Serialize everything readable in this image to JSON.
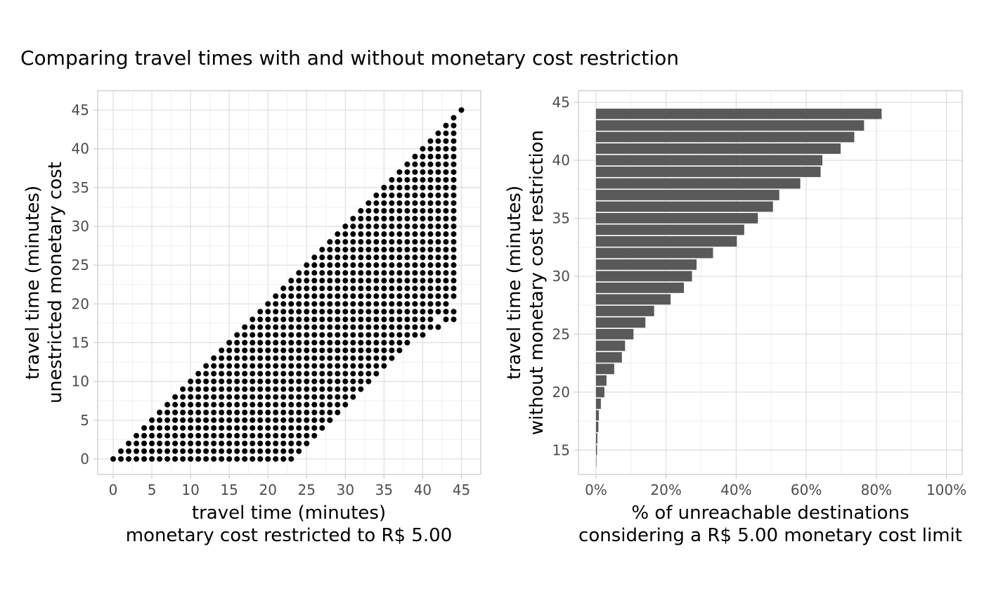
{
  "title": "Comparing travel times with and without monetary cost restriction",
  "chart_data": [
    {
      "type": "scatter",
      "xlabel": [
        "travel time (minutes)",
        "monetary cost restricted to R$ 5.00"
      ],
      "ylabel": [
        "travel time (minutes)",
        "unestricted monetary cost"
      ],
      "xlim": [
        -2,
        47.5
      ],
      "ylim": [
        -2,
        47.5
      ],
      "xticks": [
        0,
        5,
        10,
        15,
        20,
        25,
        30,
        35,
        40,
        45
      ],
      "yticks": [
        0,
        5,
        10,
        15,
        20,
        25,
        30,
        35,
        40,
        45
      ],
      "grid": true,
      "point_color": "#000000",
      "grid_rule": "for each unrestricted time y from 0 to 45, a point at every restricted time x from y up to min(44, y+23), plus the points in extra_points",
      "extra_points": [
        [
          45,
          45
        ],
        [
          9,
          9
        ],
        [
          10,
          10
        ],
        [
          11,
          11
        ],
        [
          12,
          9
        ],
        [
          13,
          9
        ],
        [
          16,
          11
        ],
        [
          17,
          12
        ],
        [
          18,
          13
        ],
        [
          19,
          13
        ],
        [
          20,
          13
        ],
        [
          21,
          13
        ],
        [
          22,
          13
        ],
        [
          23,
          13
        ],
        [
          24,
          13
        ],
        [
          25,
          13
        ],
        [
          26,
          13
        ],
        [
          29,
          13
        ],
        [
          32,
          14
        ],
        [
          34,
          14
        ],
        [
          36,
          14
        ],
        [
          22,
          14
        ],
        [
          23,
          14
        ],
        [
          24,
          14
        ],
        [
          26,
          14
        ],
        [
          29,
          14
        ],
        [
          35,
          16
        ],
        [
          36,
          16
        ],
        [
          37,
          16
        ],
        [
          40,
          16
        ],
        [
          42,
          17
        ],
        [
          43,
          18
        ],
        [
          44,
          18
        ],
        [
          37,
          17
        ],
        [
          38,
          17
        ],
        [
          39,
          17
        ],
        [
          40,
          17
        ],
        [
          41,
          17
        ],
        [
          42,
          20
        ],
        [
          43,
          19
        ],
        [
          44,
          19
        ]
      ]
    },
    {
      "type": "bar",
      "orientation": "horizontal",
      "xlabel": [
        "% of unreachable destinations",
        "considering a R$ 5.00 monetary cost limit"
      ],
      "ylabel": [
        "travel time (minutes)",
        "without monetary cost restriction"
      ],
      "xlim": [
        -0.05,
        1.045
      ],
      "ylim": [
        12.9,
        46
      ],
      "xticks": [
        0,
        0.2,
        0.4,
        0.6,
        0.8,
        1.0
      ],
      "xtick_labels": [
        "0%",
        "20%",
        "40%",
        "60%",
        "80%",
        "100%"
      ],
      "yticks": [
        15,
        20,
        25,
        30,
        35,
        40,
        45
      ],
      "grid": true,
      "bar_color": "#595959",
      "categories": [
        14,
        15,
        16,
        17,
        18,
        19,
        20,
        21,
        22,
        23,
        24,
        25,
        26,
        27,
        28,
        29,
        30,
        31,
        32,
        33,
        34,
        35,
        36,
        37,
        38,
        39,
        40,
        41,
        42,
        43,
        44
      ],
      "values": [
        0.001,
        0.003,
        0.004,
        0.007,
        0.008,
        0.014,
        0.024,
        0.03,
        0.052,
        0.074,
        0.083,
        0.107,
        0.141,
        0.166,
        0.213,
        0.251,
        0.274,
        0.287,
        0.334,
        0.402,
        0.423,
        0.462,
        0.505,
        0.523,
        0.583,
        0.641,
        0.646,
        0.698,
        0.737,
        0.765,
        0.815
      ]
    }
  ]
}
